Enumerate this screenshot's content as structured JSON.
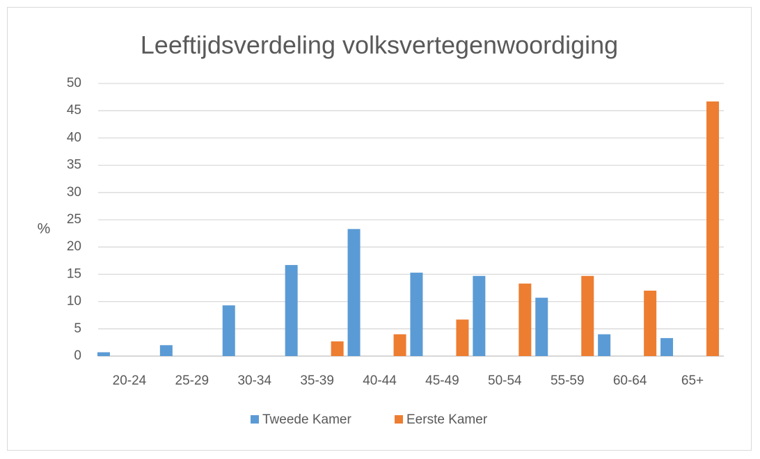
{
  "chart_data": {
    "type": "bar",
    "title": "Leeftijdsverdeling volksvertegenwoordiging",
    "xlabel": "",
    "ylabel": "%",
    "ylim": [
      0,
      50
    ],
    "yticks": [
      0,
      5,
      10,
      15,
      20,
      25,
      30,
      35,
      40,
      45,
      50
    ],
    "grid": true,
    "legend_position": "bottom",
    "categories": [
      "20-24",
      "25-29",
      "30-34",
      "35-39",
      "40-44",
      "45-49",
      "50-54",
      "55-59",
      "60-64",
      "65+"
    ],
    "series": [
      {
        "name": "Tweede Kamer",
        "color": "#5b9bd5",
        "values": [
          0.7,
          2.0,
          9.3,
          16.7,
          23.3,
          15.3,
          14.7,
          10.7,
          4.0,
          3.3
        ]
      },
      {
        "name": "Eerste Kamer",
        "color": "#ed7d31",
        "values": [
          0,
          0,
          0,
          2.7,
          4.0,
          6.7,
          13.3,
          14.7,
          12.0,
          46.7
        ]
      }
    ]
  }
}
